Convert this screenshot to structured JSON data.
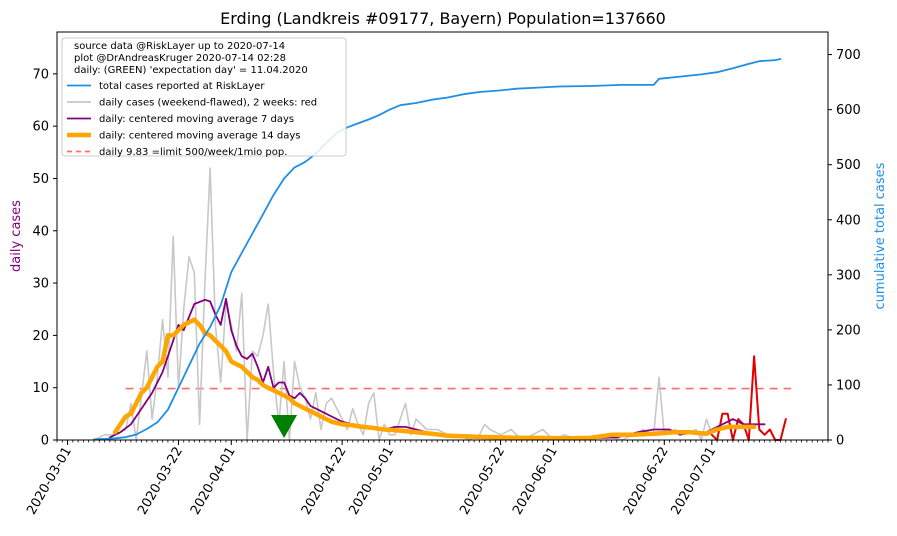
{
  "chart_data": {
    "type": "line",
    "title": "Erding (Landkreis #09177, Bayern) Population=137660",
    "ylabel_left": "daily cases",
    "ylabel_right": "cumulative total cases",
    "ylim_left": [
      0,
      78
    ],
    "ylim_right": [
      0,
      741
    ],
    "xlim": [
      "2020-02-28",
      "2020-07-23"
    ],
    "yticks_left": [
      0,
      10,
      20,
      30,
      40,
      50,
      60,
      70
    ],
    "yticks_right": [
      0,
      100,
      200,
      300,
      400,
      500,
      600,
      700
    ],
    "xticks": [
      "2020-03-01",
      "2020-03-22",
      "2020-04-01",
      "2020-04-22",
      "2020-05-01",
      "2020-05-22",
      "2020-06-01",
      "2020-06-22",
      "2020-07-01"
    ],
    "legend": {
      "header": [
        "source data @RiskLayer up to 2020-07-14",
        "plot @DrAndreasKruger 2020-07-14 02:28",
        "daily: (GREEN) 'expectation day' = 11.04.2020"
      ],
      "entries": [
        {
          "label": "total cases reported at RiskLayer",
          "color": "#1f8fe6"
        },
        {
          "label": "daily cases (weekend-flawed), 2 weeks: red",
          "color": "#c8c8c8"
        },
        {
          "label": "daily: centered moving average 7 days",
          "color": "#800080"
        },
        {
          "label": "daily: centered moving average 14 days",
          "color": "#ffa500"
        },
        {
          "label": "daily 9.83 =limit 500/week/1mio pop.",
          "color": "#ff6b6b"
        }
      ]
    },
    "limit_value": 9.83,
    "expectation_day": "2020-04-11",
    "series": {
      "cumulative_total": [
        [
          "2020-03-06",
          1
        ],
        [
          "2020-03-08",
          2
        ],
        [
          "2020-03-10",
          3
        ],
        [
          "2020-03-12",
          5
        ],
        [
          "2020-03-14",
          10
        ],
        [
          "2020-03-16",
          20
        ],
        [
          "2020-03-18",
          32
        ],
        [
          "2020-03-20",
          55
        ],
        [
          "2020-03-22",
          95
        ],
        [
          "2020-03-24",
          135
        ],
        [
          "2020-03-26",
          175
        ],
        [
          "2020-03-28",
          205
        ],
        [
          "2020-03-30",
          245
        ],
        [
          "2020-04-01",
          305
        ],
        [
          "2020-04-03",
          340
        ],
        [
          "2020-04-05",
          375
        ],
        [
          "2020-04-07",
          410
        ],
        [
          "2020-04-09",
          445
        ],
        [
          "2020-04-11",
          475
        ],
        [
          "2020-04-13",
          495
        ],
        [
          "2020-04-15",
          505
        ],
        [
          "2020-04-17",
          520
        ],
        [
          "2020-04-19",
          540
        ],
        [
          "2020-04-21",
          558
        ],
        [
          "2020-04-23",
          568
        ],
        [
          "2020-04-25",
          575
        ],
        [
          "2020-04-27",
          582
        ],
        [
          "2020-04-29",
          590
        ],
        [
          "2020-05-01",
          600
        ],
        [
          "2020-05-03",
          608
        ],
        [
          "2020-05-06",
          612
        ],
        [
          "2020-05-09",
          618
        ],
        [
          "2020-05-12",
          622
        ],
        [
          "2020-05-15",
          628
        ],
        [
          "2020-05-18",
          632
        ],
        [
          "2020-05-22",
          635
        ],
        [
          "2020-05-25",
          638
        ],
        [
          "2020-05-29",
          640
        ],
        [
          "2020-06-02",
          642
        ],
        [
          "2020-06-08",
          643
        ],
        [
          "2020-06-14",
          645
        ],
        [
          "2020-06-20",
          645
        ],
        [
          "2020-06-21",
          656
        ],
        [
          "2020-06-25",
          660
        ],
        [
          "2020-06-29",
          664
        ],
        [
          "2020-07-02",
          668
        ],
        [
          "2020-07-05",
          675
        ],
        [
          "2020-07-08",
          683
        ],
        [
          "2020-07-10",
          688
        ],
        [
          "2020-07-13",
          690
        ],
        [
          "2020-07-14",
          692
        ]
      ],
      "daily_raw": [
        [
          "2020-03-06",
          0
        ],
        [
          "2020-03-08",
          1
        ],
        [
          "2020-03-10",
          1
        ],
        [
          "2020-03-12",
          2
        ],
        [
          "2020-03-13",
          7
        ],
        [
          "2020-03-14",
          0
        ],
        [
          "2020-03-16",
          17
        ],
        [
          "2020-03-17",
          4
        ],
        [
          "2020-03-18",
          12
        ],
        [
          "2020-03-19",
          23
        ],
        [
          "2020-03-20",
          12
        ],
        [
          "2020-03-21",
          39
        ],
        [
          "2020-03-22",
          10
        ],
        [
          "2020-03-23",
          25
        ],
        [
          "2020-03-24",
          35
        ],
        [
          "2020-03-25",
          32
        ],
        [
          "2020-03-26",
          3
        ],
        [
          "2020-03-27",
          30
        ],
        [
          "2020-03-28",
          52
        ],
        [
          "2020-03-29",
          22
        ],
        [
          "2020-03-30",
          11
        ],
        [
          "2020-03-31",
          26
        ],
        [
          "2020-04-01",
          22
        ],
        [
          "2020-04-02",
          17
        ],
        [
          "2020-04-03",
          28
        ],
        [
          "2020-04-04",
          0
        ],
        [
          "2020-04-05",
          17
        ],
        [
          "2020-04-06",
          16
        ],
        [
          "2020-04-07",
          20
        ],
        [
          "2020-04-08",
          26
        ],
        [
          "2020-04-09",
          13
        ],
        [
          "2020-04-10",
          3
        ],
        [
          "2020-04-11",
          15
        ],
        [
          "2020-04-12",
          0
        ],
        [
          "2020-04-13",
          15
        ],
        [
          "2020-04-14",
          10
        ],
        [
          "2020-04-15",
          8
        ],
        [
          "2020-04-16",
          4
        ],
        [
          "2020-04-17",
          9
        ],
        [
          "2020-04-18",
          2
        ],
        [
          "2020-04-19",
          7
        ],
        [
          "2020-04-20",
          8
        ],
        [
          "2020-04-21",
          6
        ],
        [
          "2020-04-22",
          4
        ],
        [
          "2020-04-23",
          2
        ],
        [
          "2020-04-24",
          6
        ],
        [
          "2020-04-25",
          3
        ],
        [
          "2020-04-26",
          1
        ],
        [
          "2020-04-27",
          7
        ],
        [
          "2020-04-28",
          9
        ],
        [
          "2020-04-29",
          0
        ],
        [
          "2020-04-30",
          3
        ],
        [
          "2020-05-01",
          1
        ],
        [
          "2020-05-02",
          1
        ],
        [
          "2020-05-04",
          7
        ],
        [
          "2020-05-05",
          1
        ],
        [
          "2020-05-06",
          4
        ],
        [
          "2020-05-08",
          2
        ],
        [
          "2020-05-10",
          2
        ],
        [
          "2020-05-12",
          1
        ],
        [
          "2020-05-14",
          1
        ],
        [
          "2020-05-16",
          0
        ],
        [
          "2020-05-18",
          1
        ],
        [
          "2020-05-19",
          3
        ],
        [
          "2020-05-20",
          2
        ],
        [
          "2020-05-22",
          1
        ],
        [
          "2020-05-24",
          2
        ],
        [
          "2020-05-26",
          0
        ],
        [
          "2020-05-28",
          1
        ],
        [
          "2020-05-30",
          2
        ],
        [
          "2020-06-01",
          0
        ],
        [
          "2020-06-03",
          1
        ],
        [
          "2020-06-06",
          0
        ],
        [
          "2020-06-10",
          1
        ],
        [
          "2020-06-14",
          0
        ],
        [
          "2020-06-18",
          2
        ],
        [
          "2020-06-20",
          1
        ],
        [
          "2020-06-21",
          12
        ],
        [
          "2020-06-22",
          1
        ],
        [
          "2020-06-24",
          2
        ],
        [
          "2020-06-26",
          1
        ],
        [
          "2020-06-28",
          2
        ],
        [
          "2020-06-29",
          0
        ],
        [
          "2020-06-30",
          4
        ],
        [
          "2020-07-01",
          1
        ]
      ],
      "daily_raw_last2weeks": [
        [
          "2020-07-01",
          1
        ],
        [
          "2020-07-02",
          0
        ],
        [
          "2020-07-03",
          5
        ],
        [
          "2020-07-04",
          5
        ],
        [
          "2020-07-05",
          0
        ],
        [
          "2020-07-06",
          4
        ],
        [
          "2020-07-07",
          3
        ],
        [
          "2020-07-08",
          0
        ],
        [
          "2020-07-09",
          16
        ],
        [
          "2020-07-10",
          2
        ],
        [
          "2020-07-11",
          1
        ],
        [
          "2020-07-12",
          2
        ],
        [
          "2020-07-13",
          0
        ],
        [
          "2020-07-14",
          0
        ],
        [
          "2020-07-15",
          4
        ]
      ],
      "ma7": [
        [
          "2020-03-09",
          0.5
        ],
        [
          "2020-03-11",
          1.5
        ],
        [
          "2020-03-13",
          3
        ],
        [
          "2020-03-15",
          6
        ],
        [
          "2020-03-17",
          9
        ],
        [
          "2020-03-19",
          13
        ],
        [
          "2020-03-21",
          19
        ],
        [
          "2020-03-22",
          22
        ],
        [
          "2020-03-23",
          21
        ],
        [
          "2020-03-25",
          26
        ],
        [
          "2020-03-27",
          26.8
        ],
        [
          "2020-03-28",
          26.5
        ],
        [
          "2020-03-29",
          24
        ],
        [
          "2020-03-30",
          22
        ],
        [
          "2020-03-31",
          27
        ],
        [
          "2020-04-01",
          21
        ],
        [
          "2020-04-02",
          18
        ],
        [
          "2020-04-03",
          16
        ],
        [
          "2020-04-04",
          15.5
        ],
        [
          "2020-04-05",
          16.5
        ],
        [
          "2020-04-06",
          14
        ],
        [
          "2020-04-07",
          11
        ],
        [
          "2020-04-08",
          14
        ],
        [
          "2020-04-09",
          10
        ],
        [
          "2020-04-10",
          11
        ],
        [
          "2020-04-11",
          11
        ],
        [
          "2020-04-12",
          8.5
        ],
        [
          "2020-04-13",
          8
        ],
        [
          "2020-04-14",
          9
        ],
        [
          "2020-04-15",
          8
        ],
        [
          "2020-04-16",
          6.5
        ],
        [
          "2020-04-17",
          6
        ],
        [
          "2020-04-18",
          5.5
        ],
        [
          "2020-04-19",
          5
        ],
        [
          "2020-04-20",
          4.5
        ],
        [
          "2020-04-22",
          3.5
        ],
        [
          "2020-04-24",
          3
        ],
        [
          "2020-04-26",
          2.5
        ],
        [
          "2020-04-28",
          2.5
        ],
        [
          "2020-04-30",
          2
        ],
        [
          "2020-05-02",
          2.5
        ],
        [
          "2020-05-04",
          2.5
        ],
        [
          "2020-05-06",
          2
        ],
        [
          "2020-05-08",
          1.5
        ],
        [
          "2020-05-10",
          1
        ],
        [
          "2020-05-12",
          0.8
        ],
        [
          "2020-05-14",
          0.6
        ],
        [
          "2020-05-18",
          0.6
        ],
        [
          "2020-05-22",
          0.5
        ],
        [
          "2020-05-26",
          0.5
        ],
        [
          "2020-05-30",
          0.4
        ],
        [
          "2020-06-03",
          0.3
        ],
        [
          "2020-06-08",
          0.3
        ],
        [
          "2020-06-13",
          0.5
        ],
        [
          "2020-06-17",
          1.5
        ],
        [
          "2020-06-20",
          2
        ],
        [
          "2020-06-23",
          2
        ],
        [
          "2020-06-25",
          1
        ],
        [
          "2020-06-27",
          1.5
        ],
        [
          "2020-06-29",
          1
        ],
        [
          "2020-07-01",
          2
        ],
        [
          "2020-07-03",
          3
        ],
        [
          "2020-07-05",
          4
        ],
        [
          "2020-07-07",
          3
        ],
        [
          "2020-07-09",
          3
        ],
        [
          "2020-07-11",
          3
        ]
      ],
      "ma14": [
        [
          "2020-03-10",
          1.5
        ],
        [
          "2020-03-11",
          3
        ],
        [
          "2020-03-12",
          4.5
        ],
        [
          "2020-03-13",
          5
        ],
        [
          "2020-03-14",
          7
        ],
        [
          "2020-03-15",
          9
        ],
        [
          "2020-03-16",
          10
        ],
        [
          "2020-03-17",
          12
        ],
        [
          "2020-03-18",
          14
        ],
        [
          "2020-03-19",
          15
        ],
        [
          "2020-03-20",
          20
        ],
        [
          "2020-03-21",
          20
        ],
        [
          "2020-03-22",
          21
        ],
        [
          "2020-03-23",
          22
        ],
        [
          "2020-03-24",
          22.5
        ],
        [
          "2020-03-25",
          23
        ],
        [
          "2020-03-26",
          22
        ],
        [
          "2020-03-27",
          20.5
        ],
        [
          "2020-03-28",
          20
        ],
        [
          "2020-03-29",
          19
        ],
        [
          "2020-03-30",
          18
        ],
        [
          "2020-03-31",
          17
        ],
        [
          "2020-04-01",
          15
        ],
        [
          "2020-04-02",
          14.5
        ],
        [
          "2020-04-03",
          14
        ],
        [
          "2020-04-04",
          13
        ],
        [
          "2020-04-05",
          12
        ],
        [
          "2020-04-06",
          11.5
        ],
        [
          "2020-04-07",
          10.5
        ],
        [
          "2020-04-08",
          10
        ],
        [
          "2020-04-09",
          9.5
        ],
        [
          "2020-04-10",
          9
        ],
        [
          "2020-04-11",
          8.5
        ],
        [
          "2020-04-12",
          8
        ],
        [
          "2020-04-13",
          7
        ],
        [
          "2020-04-14",
          6.5
        ],
        [
          "2020-04-15",
          6
        ],
        [
          "2020-04-16",
          5.5
        ],
        [
          "2020-04-17",
          5
        ],
        [
          "2020-04-18",
          4.5
        ],
        [
          "2020-04-19",
          4
        ],
        [
          "2020-04-20",
          3.5
        ],
        [
          "2020-04-22",
          3
        ],
        [
          "2020-04-24",
          2.8
        ],
        [
          "2020-04-26",
          2.5
        ],
        [
          "2020-04-28",
          2.3
        ],
        [
          "2020-04-30",
          2
        ],
        [
          "2020-05-03",
          1.8
        ],
        [
          "2020-05-06",
          1.5
        ],
        [
          "2020-05-09",
          1.2
        ],
        [
          "2020-05-12",
          0.8
        ],
        [
          "2020-05-15",
          0.7
        ],
        [
          "2020-05-18",
          0.6
        ],
        [
          "2020-05-22",
          0.5
        ],
        [
          "2020-05-26",
          0.4
        ],
        [
          "2020-05-30",
          0.4
        ],
        [
          "2020-06-03",
          0.3
        ],
        [
          "2020-06-08",
          0.4
        ],
        [
          "2020-06-12",
          1
        ],
        [
          "2020-06-16",
          1
        ],
        [
          "2020-06-20",
          1.2
        ],
        [
          "2020-06-24",
          1.5
        ],
        [
          "2020-06-27",
          1.5
        ],
        [
          "2020-06-30",
          1.2
        ],
        [
          "2020-07-02",
          2
        ],
        [
          "2020-07-04",
          2.5
        ],
        [
          "2020-07-06",
          2.5
        ],
        [
          "2020-07-08",
          2.5
        ],
        [
          "2020-07-09",
          2.5
        ]
      ]
    }
  }
}
